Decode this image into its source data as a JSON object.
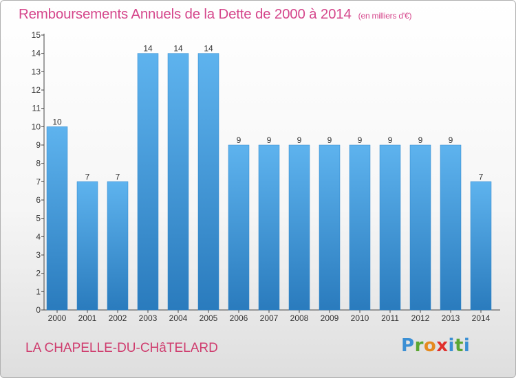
{
  "title": "Remboursements Annuels de la Dette de 2000 à 2014",
  "subtitle": "(en milliers d'€)",
  "commune": "LA CHAPELLE-DU-CHâTELARD",
  "logo": {
    "letters": [
      "P",
      "r",
      "o",
      "x",
      "i",
      "t",
      "i"
    ]
  },
  "colors": {
    "bar": "#3f97dc",
    "title": "#d5478c",
    "commune": "#cf3c6e"
  },
  "chart_data": {
    "type": "bar",
    "title": "Remboursements Annuels de la Dette de 2000 à 2014",
    "subtitle": "(en milliers d'€)",
    "categories": [
      "2000",
      "2001",
      "2002",
      "2003",
      "2004",
      "2005",
      "2006",
      "2007",
      "2008",
      "2009",
      "2010",
      "2011",
      "2012",
      "2013",
      "2014"
    ],
    "values": [
      10,
      7,
      7,
      14,
      14,
      14,
      9,
      9,
      9,
      9,
      9,
      9,
      9,
      9,
      7
    ],
    "data_labels": [
      "10",
      "7",
      "7",
      "14",
      "14",
      "14",
      "9",
      "9",
      "9",
      "9",
      "9",
      "9",
      "9",
      "9",
      "7"
    ],
    "yticks": [
      "0",
      "1",
      "2",
      "3",
      "4",
      "5",
      "6",
      "7",
      "8",
      "9",
      "10",
      "11",
      "12",
      "13",
      "14",
      "15"
    ],
    "ylim": [
      0,
      15
    ],
    "grid": false
  }
}
